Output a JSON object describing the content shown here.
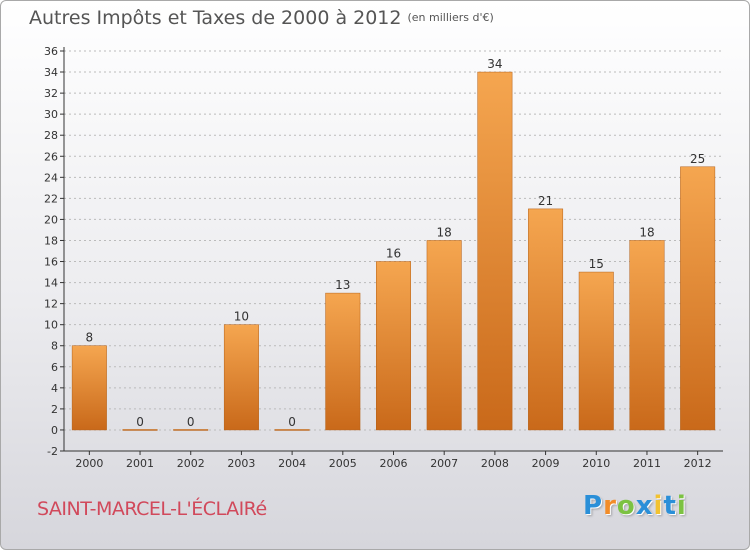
{
  "title": "Autres Impôts et Taxes de 2000 à 2012",
  "unit_note": "(en milliers d'€)",
  "commune": "SAINT-MARCEL-L'ÉCLAIRé",
  "logo": {
    "letters": [
      "P",
      "r",
      "o",
      "x",
      "i",
      "t",
      "i"
    ],
    "colors": [
      "#2a8fd8",
      "#f28c28",
      "#7cc242",
      "#2a8fd8",
      "#f2c230",
      "#2a8fd8",
      "#7cc242"
    ]
  },
  "colors": {
    "bar_top": "#f5a650",
    "bar_bottom": "#c9691a",
    "axis": "#333333",
    "grid": "#bbbbbb"
  },
  "chart_data": {
    "type": "bar",
    "categories": [
      "2000",
      "2001",
      "2002",
      "2003",
      "2004",
      "2005",
      "2006",
      "2007",
      "2008",
      "2009",
      "2010",
      "2011",
      "2012"
    ],
    "values": [
      8,
      0,
      0,
      10,
      0,
      13,
      16,
      18,
      34,
      21,
      15,
      18,
      25
    ],
    "data_labels": [
      "8",
      "0",
      "0",
      "10",
      "0",
      "13",
      "16",
      "18",
      "34",
      "21",
      "15",
      "18",
      "25"
    ],
    "yticks": [
      "-2",
      "0",
      "2",
      "4",
      "6",
      "8",
      "10",
      "12",
      "14",
      "16",
      "18",
      "20",
      "22",
      "24",
      "26",
      "28",
      "30",
      "32",
      "34",
      "36"
    ],
    "ylim": [
      -2,
      36
    ],
    "grid": true
  }
}
